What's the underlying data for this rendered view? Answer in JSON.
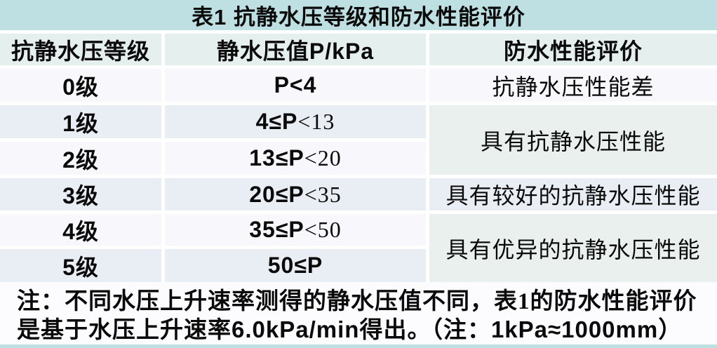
{
  "table": {
    "title": "表1 抗静水压等级和防水性能评价",
    "columns": {
      "grade": "抗静水压等级",
      "pressure": "静水压值P/kPa",
      "evaluation": "防水性能评价"
    },
    "rows": [
      {
        "grade": "0级",
        "value_bold": "P<4",
        "value_serif": "",
        "eval": "抗静水压性能差"
      },
      {
        "grade": "1级",
        "value_bold": "4≤P",
        "value_serif": "<13"
      },
      {
        "grade": "2级",
        "value_bold": "13≤P",
        "value_serif": "<20"
      },
      {
        "grade": "3级",
        "value_bold": "20≤P",
        "value_serif": "<35",
        "eval": "具有较好的抗静水压性能"
      },
      {
        "grade": "4级",
        "value_bold": "35≤P",
        "value_serif": "<50"
      },
      {
        "grade": "5级",
        "value_bold": "50≤P",
        "value_serif": ""
      }
    ],
    "merged_evals": {
      "rows_1_2": "具有抗静水压性能",
      "rows_4_5": "具有优异的抗静水压性能"
    },
    "note": {
      "line1": "注：不同水压上升速率测得的静水压值不同，表1的防水性能评价",
      "line2_prefix": "是基于水压上升速率",
      "line2_rate": "6.0kPa/min",
      "line2_mid": "得出。（注：",
      "line2_equiv": "1kPa≈1000mm",
      "line2_suffix": "）"
    },
    "colors": {
      "title_bg": "#bfe0e2",
      "header_bg": "#e5efed",
      "row_light": "#f7f7fc",
      "row_blue": "#e9eef5",
      "merged_bg": "#eaf0ee",
      "note_bg": "#fcfcfe",
      "text_color": "#0a0a0a"
    }
  }
}
